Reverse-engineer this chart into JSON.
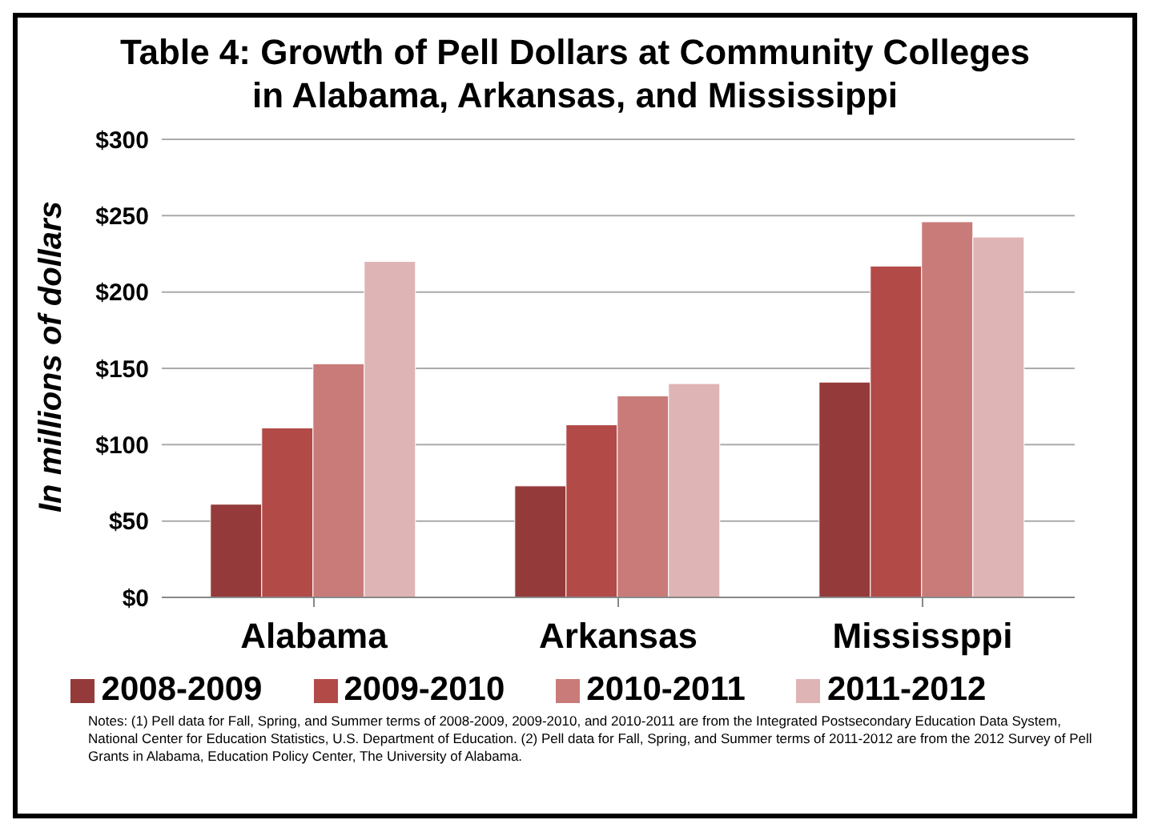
{
  "chart_data": {
    "type": "bar",
    "title": "Table 4:  Growth of Pell Dollars at Community Colleges\nin Alabama, Arkansas, and Mississippi",
    "ylabel": "In millions of dollars",
    "categories": [
      "Alabama",
      "Arkansas",
      "Mississppi"
    ],
    "series": [
      {
        "name": "2008-2009",
        "color": "#943a3a",
        "values": [
          61,
          73,
          141
        ]
      },
      {
        "name": "2009-2010",
        "color": "#b24a48",
        "values": [
          111,
          113,
          217
        ]
      },
      {
        "name": "2010-2011",
        "color": "#c97b7a",
        "values": [
          153,
          132,
          246
        ]
      },
      {
        "name": "2011-2012",
        "color": "#dfb4b4",
        "values": [
          220,
          140,
          236
        ]
      }
    ],
    "ylim": [
      0,
      300
    ],
    "yticks": [
      {
        "value": 0,
        "label": "$0"
      },
      {
        "value": 50,
        "label": "$50"
      },
      {
        "value": 100,
        "label": "$100"
      },
      {
        "value": 150,
        "label": "$150"
      },
      {
        "value": 200,
        "label": "$200"
      },
      {
        "value": 250,
        "label": "$250"
      },
      {
        "value": 300,
        "label": "$300"
      }
    ],
    "grid": "y",
    "legend": "bottom",
    "annotations": [
      "Notes:  (1) Pell data for Fall, Spring, and Summer terms of 2008-2009, 2009-2010, and 2010-2011 are from the Integrated Postsecondary Education Data System, National Center for Education Statistics, U.S. Department of Education.  (2) Pell data for Fall, Spring, and Summer terms of  2011-2012 are from the 2012 Survey of Pell Grants in Alabama, Education Policy Center, The University of Alabama."
    ]
  }
}
